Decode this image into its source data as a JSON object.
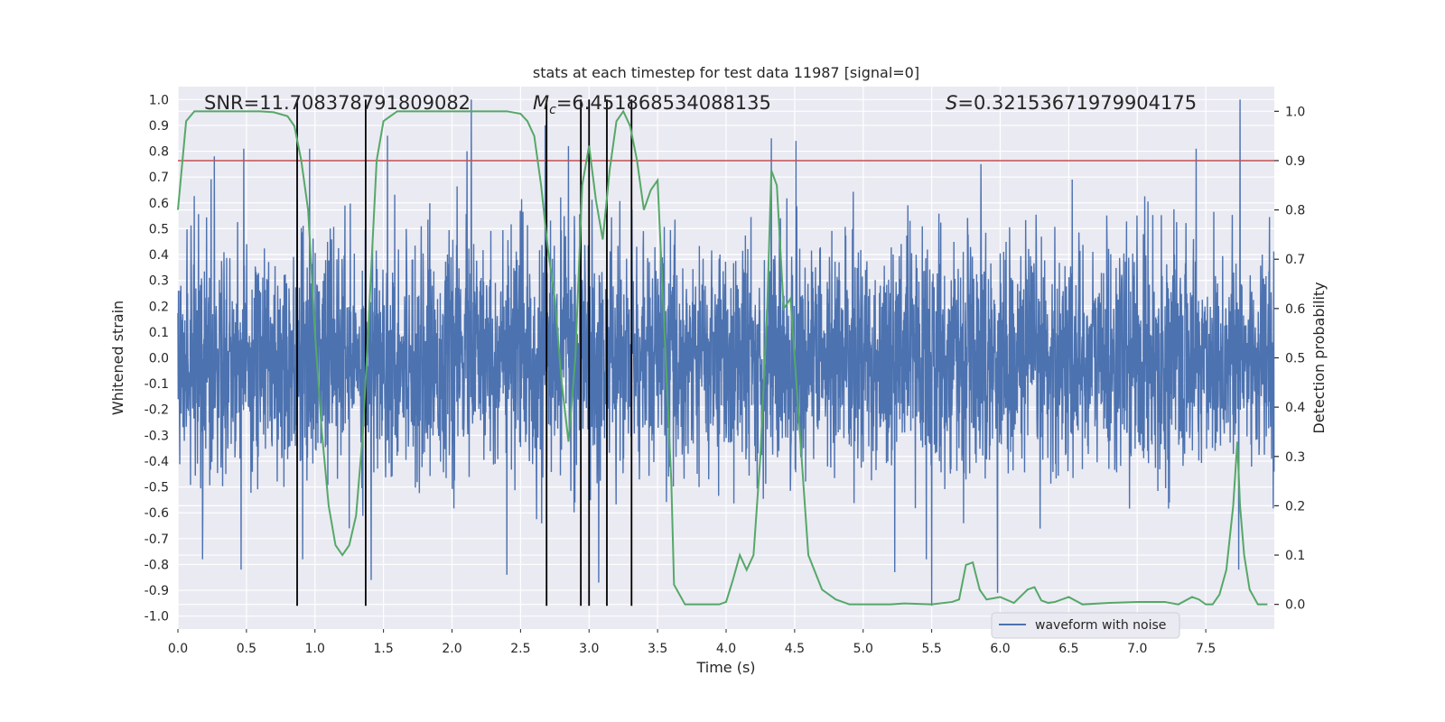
{
  "chart_data": {
    "type": "line",
    "title": "stats at each timestep for test data 11987 [signal=0]",
    "xlabel": "Time (s)",
    "ylabel_left": "Whitened strain",
    "ylabel_right": "Detection probability",
    "xlim": [
      0,
      8
    ],
    "ylim_left": [
      -1.05,
      1.05
    ],
    "ylim_right": [
      -0.05,
      1.05
    ],
    "x_ticks": [
      0,
      0.5,
      1,
      1.5,
      2,
      2.5,
      3,
      3.5,
      4,
      4.5,
      5,
      5.5,
      6,
      6.5,
      7,
      7.5
    ],
    "x_tick_labels": [
      "0.0",
      "0.5",
      "1.0",
      "1.5",
      "2.0",
      "2.5",
      "3.0",
      "3.5",
      "4.0",
      "4.5",
      "5.0",
      "5.5",
      "6.0",
      "6.5",
      "7.0",
      "7.5"
    ],
    "y_left_ticks": [
      1.0,
      0.9,
      0.8,
      0.7,
      0.6,
      0.5,
      0.4,
      0.3,
      0.2,
      0.1,
      0.0,
      -0.1,
      -0.2,
      -0.3,
      -0.4,
      -0.5,
      -0.6,
      -0.7,
      -0.8,
      -0.9,
      -1.0
    ],
    "y_left_tick_labels": [
      "1.0",
      "0.9",
      "0.8",
      "0.7",
      "0.6",
      "0.5",
      "0.4",
      "0.3",
      "0.2",
      "0.1",
      "0.0",
      "-0.1",
      "-0.2",
      "-0.3",
      "-0.4",
      "-0.5",
      "-0.6",
      "-0.7",
      "-0.8",
      "-0.9",
      "-1.0"
    ],
    "y_right_ticks": [
      1.0,
      0.9,
      0.8,
      0.7,
      0.6,
      0.5,
      0.4,
      0.3,
      0.2,
      0.1,
      0.0
    ],
    "y_right_tick_labels": [
      "1.0",
      "0.9",
      "0.8",
      "0.7",
      "0.6",
      "0.5",
      "0.4",
      "0.3",
      "0.2",
      "0.1",
      "0.0"
    ],
    "annotations": {
      "snr": "SNR=11.708378791809082",
      "mc_symbol": "M",
      "mc_subscript": "c",
      "mc_value": "=6.451868534088135",
      "s_symbol": "S",
      "s_value": "=0.32153671979904175"
    },
    "threshold_right": 0.9,
    "event_lines_x": [
      0.87,
      1.37,
      2.69,
      2.94,
      3.0,
      3.13,
      3.31
    ],
    "event_line_ylim_left": [
      -0.96,
      1.0
    ],
    "waveform": {
      "name": "waveform with noise",
      "fs": 512,
      "noise_sigma": 0.22,
      "seed": 11987,
      "spikes": [
        {
          "t": 2.14,
          "v": 1.0
        },
        {
          "t": 7.75,
          "v": 1.0
        },
        {
          "t": 2.68,
          "v": 0.9
        },
        {
          "t": 4.33,
          "v": 0.85
        },
        {
          "t": 4.51,
          "v": 0.84
        },
        {
          "t": 0.96,
          "v": 0.81
        },
        {
          "t": 1.53,
          "v": 0.86
        },
        {
          "t": 2.11,
          "v": 0.8
        },
        {
          "t": 2.85,
          "v": 0.82
        },
        {
          "t": 0.48,
          "v": 0.81
        },
        {
          "t": 7.43,
          "v": 0.81
        },
        {
          "t": 5.86,
          "v": 0.75
        },
        {
          "t": 5.5,
          "v": -0.96
        },
        {
          "t": 0.91,
          "v": -0.78
        },
        {
          "t": 1.41,
          "v": -0.86
        },
        {
          "t": 2.4,
          "v": -0.84
        },
        {
          "t": 5.98,
          "v": -0.91
        },
        {
          "t": 7.74,
          "v": -0.82
        },
        {
          "t": 0.46,
          "v": -0.82
        },
        {
          "t": 3.07,
          "v": -0.87
        },
        {
          "t": 5.23,
          "v": -0.83
        },
        {
          "t": 1.25,
          "v": -0.66
        }
      ]
    },
    "detection_probability": {
      "name": "Detection probability",
      "x": [
        0.0,
        0.06,
        0.12,
        0.2,
        0.3,
        0.45,
        0.6,
        0.7,
        0.8,
        0.85,
        0.9,
        0.95,
        1.0,
        1.05,
        1.1,
        1.15,
        1.2,
        1.25,
        1.3,
        1.35,
        1.4,
        1.45,
        1.5,
        1.6,
        1.8,
        2.0,
        2.2,
        2.4,
        2.5,
        2.55,
        2.6,
        2.65,
        2.7,
        2.75,
        2.8,
        2.85,
        2.9,
        2.95,
        3.0,
        3.05,
        3.1,
        3.15,
        3.2,
        3.25,
        3.3,
        3.35,
        3.4,
        3.45,
        3.5,
        3.6,
        3.62,
        3.7,
        3.8,
        3.9,
        3.95,
        4.0,
        4.05,
        4.1,
        4.15,
        4.2,
        4.25,
        4.3,
        4.33,
        4.37,
        4.42,
        4.47,
        4.5,
        4.55,
        4.6,
        4.7,
        4.8,
        4.9,
        5.0,
        5.2,
        5.3,
        5.5,
        5.65,
        5.7,
        5.75,
        5.8,
        5.85,
        5.9,
        6.0,
        6.1,
        6.2,
        6.25,
        6.3,
        6.35,
        6.4,
        6.5,
        6.6,
        6.8,
        7.0,
        7.2,
        7.3,
        7.4,
        7.45,
        7.5,
        7.55,
        7.6,
        7.65,
        7.7,
        7.73,
        7.75,
        7.78,
        7.82,
        7.88,
        7.95
      ],
      "y": [
        0.8,
        0.98,
        1.0,
        1.0,
        1.0,
        1.0,
        1.0,
        0.998,
        0.99,
        0.97,
        0.9,
        0.8,
        0.55,
        0.35,
        0.2,
        0.12,
        0.1,
        0.12,
        0.18,
        0.35,
        0.62,
        0.9,
        0.98,
        1.0,
        1.0,
        1.0,
        1.0,
        1.0,
        0.995,
        0.98,
        0.95,
        0.85,
        0.72,
        0.62,
        0.45,
        0.33,
        0.5,
        0.85,
        0.93,
        0.82,
        0.74,
        0.88,
        0.98,
        1.0,
        0.97,
        0.9,
        0.8,
        0.84,
        0.86,
        0.25,
        0.04,
        0.0,
        0.0,
        0.0,
        0.0,
        0.005,
        0.05,
        0.1,
        0.07,
        0.1,
        0.3,
        0.6,
        0.88,
        0.85,
        0.6,
        0.62,
        0.5,
        0.3,
        0.1,
        0.03,
        0.01,
        0.0,
        0.0,
        0.0,
        0.002,
        0.0,
        0.005,
        0.01,
        0.08,
        0.085,
        0.03,
        0.01,
        0.015,
        0.003,
        0.03,
        0.035,
        0.008,
        0.003,
        0.005,
        0.015,
        0.0,
        0.003,
        0.005,
        0.005,
        0.0,
        0.015,
        0.01,
        0.0,
        0.0,
        0.02,
        0.07,
        0.2,
        0.33,
        0.2,
        0.1,
        0.03,
        0.0,
        0.0
      ]
    },
    "legend": {
      "label": "waveform with noise",
      "location": "lower center"
    },
    "colors": {
      "background": "#eaeaf2",
      "grid": "#ffffff",
      "waveform": "#4c72b0",
      "probability": "#55a868",
      "threshold": "#c44e52",
      "events": "#000000",
      "text": "#262626"
    }
  }
}
